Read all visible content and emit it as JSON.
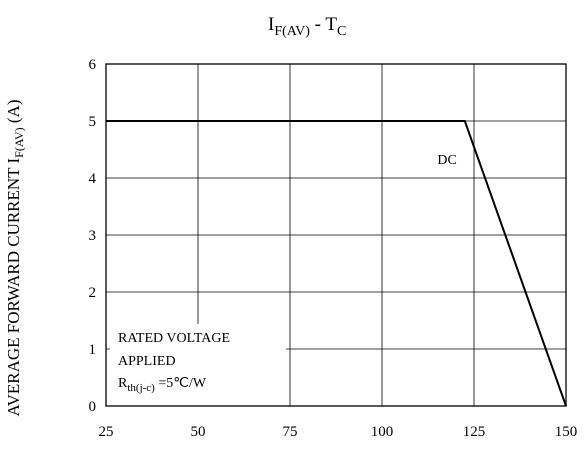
{
  "chart_data": {
    "type": "line",
    "title": {
      "base": "I",
      "sub": "F(AV)",
      "sep": " - ",
      "base2": "T",
      "sub2": "C"
    },
    "ylabel": {
      "base": "AVERAGE FORWARD CURRENT  I",
      "sub": "F(AV)",
      "unit": " (A)"
    },
    "xlabel": "",
    "xlim": [
      25,
      150
    ],
    "ylim": [
      0,
      6
    ],
    "xticks": [
      "25",
      "50",
      "75",
      "100",
      "125",
      "150"
    ],
    "yticks": [
      "0",
      "1",
      "2",
      "3",
      "4",
      "5",
      "6"
    ],
    "grid": true,
    "series": [
      {
        "name": "DC",
        "x": [
          25,
          122.5,
          150
        ],
        "y": [
          5,
          5,
          0
        ]
      }
    ],
    "annotations": {
      "condition_line1": "RATED VOLTAGE",
      "condition_line2": "APPLIED",
      "rth_base": "R",
      "rth_sub": "th(j-c)",
      "rth_value": " =5℃/W"
    }
  }
}
